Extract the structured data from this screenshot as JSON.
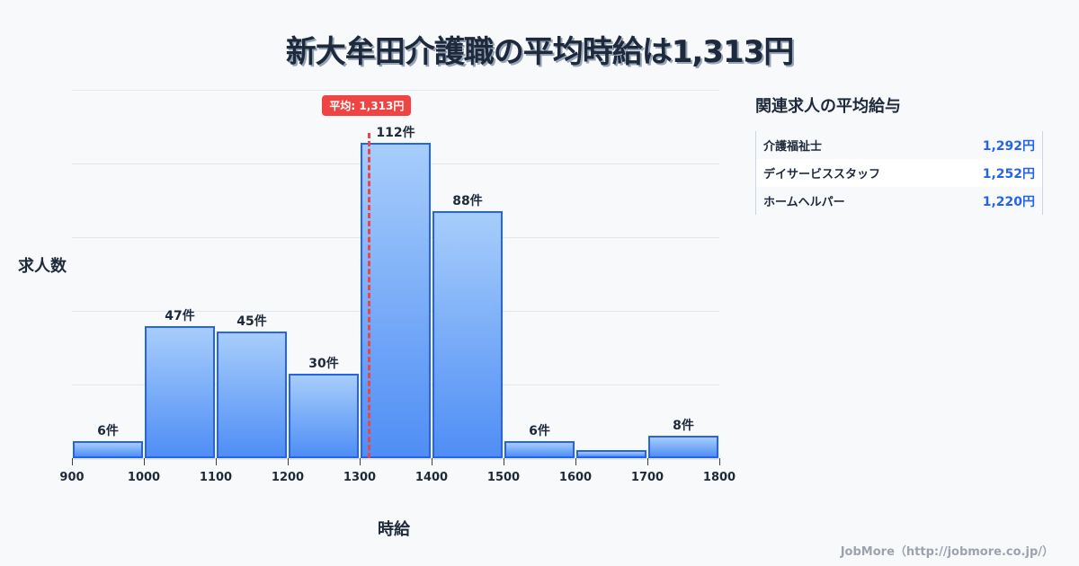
{
  "title": "新大牟田介護職の平均時給は1,313円",
  "axis": {
    "ylabel": "求人数",
    "xlabel": "時給"
  },
  "mean": {
    "label": "平均: 1,313円",
    "value": 1313,
    "color": "#ef4444"
  },
  "side": {
    "title": "関連求人の平均給与",
    "rows": [
      {
        "name": "介護福祉士",
        "value": "1,292円"
      },
      {
        "name": "デイサービススタッフ",
        "value": "1,252円"
      },
      {
        "name": "ホームヘルパー",
        "value": "1,220円"
      }
    ]
  },
  "footer": "JobMore（http://jobmore.co.jp/）",
  "colors": {
    "bar_border": "#2563eb",
    "bar_top": "#a7cdfb",
    "bar_bottom": "#4f8ef5",
    "title": "#1e293b",
    "accent": "#2563eb"
  },
  "chart_data": {
    "type": "bar",
    "title": "新大牟田介護職の平均時給は1,313円",
    "xlabel": "時給",
    "ylabel": "求人数",
    "bins": [
      [
        900,
        1000
      ],
      [
        1000,
        1100
      ],
      [
        1100,
        1200
      ],
      [
        1200,
        1300
      ],
      [
        1300,
        1400
      ],
      [
        1400,
        1500
      ],
      [
        1500,
        1600
      ],
      [
        1600,
        1700
      ],
      [
        1700,
        1800
      ]
    ],
    "categories": [
      "900-1000",
      "1000-1100",
      "1100-1200",
      "1200-1300",
      "1300-1400",
      "1400-1500",
      "1500-1600",
      "1600-1700",
      "1700-1800"
    ],
    "values": [
      6,
      47,
      45,
      30,
      112,
      88,
      6,
      3,
      8
    ],
    "labels": [
      "6件",
      "47件",
      "45件",
      "30件",
      "112件",
      "88件",
      "6件",
      "",
      "8件"
    ],
    "x_ticks": [
      "900",
      "1000",
      "1100",
      "1200",
      "1300",
      "1400",
      "1500",
      "1600",
      "1700",
      "1800"
    ],
    "xlim": [
      900,
      1800
    ],
    "ylim": [
      0,
      131
    ],
    "grid": true,
    "annotations": [
      {
        "type": "vline",
        "x": 1313,
        "label": "平均: 1,313円",
        "style": "dashed",
        "color": "#ef4444"
      }
    ]
  }
}
